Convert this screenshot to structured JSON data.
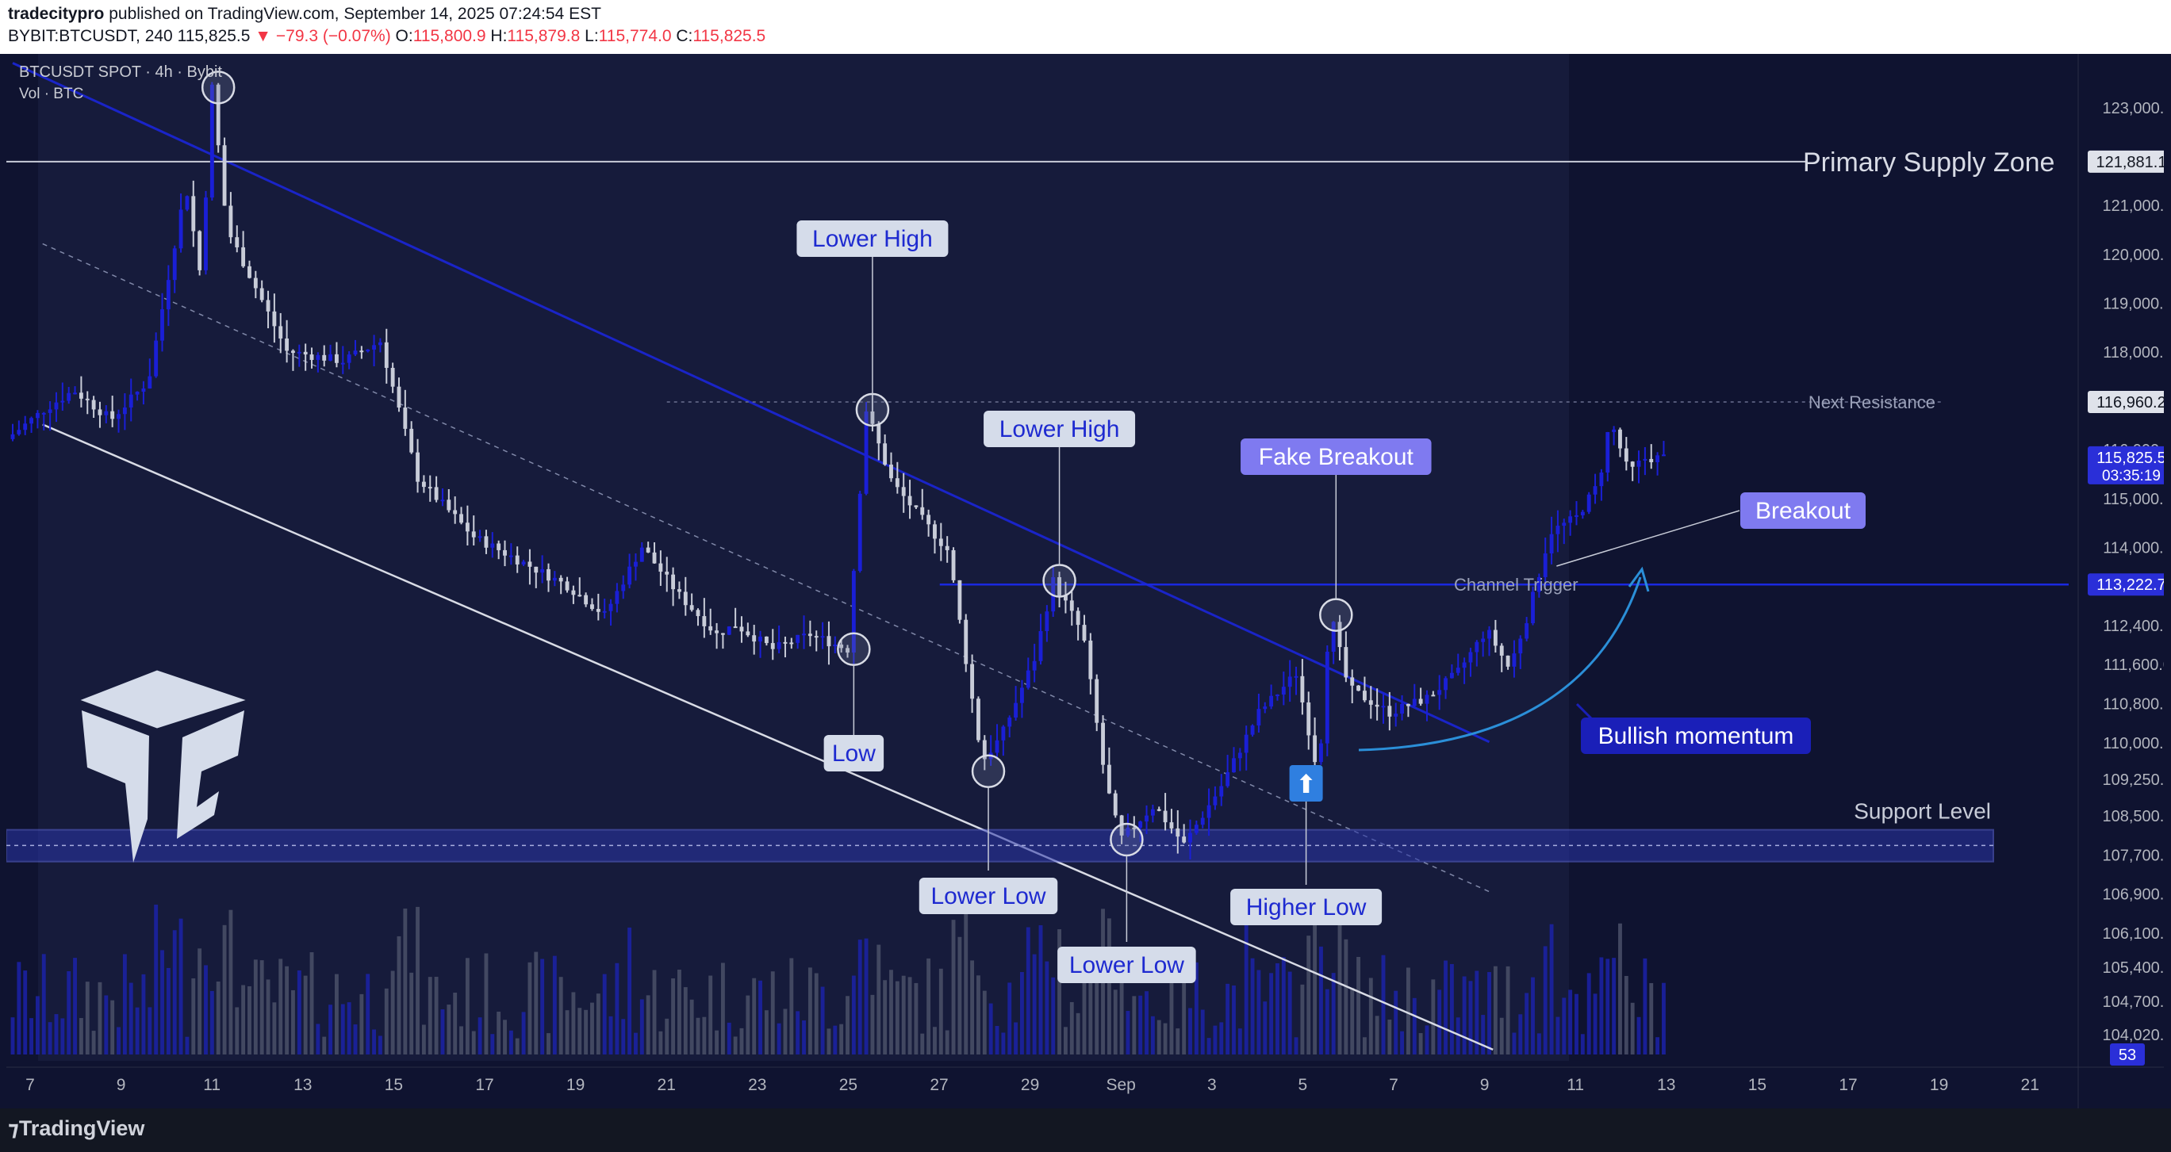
{
  "header": {
    "publisher": "tradecitypro",
    "published_text": "published on TradingView.com, September 14, 2025 07:24:54 EST",
    "symbol_line": "BYBIT:BTCUSDT, 240",
    "last_price": "115,825.5",
    "change": "▼ −79.3 (−0.07%)",
    "open_label": "O:",
    "open": "115,800.9",
    "high_label": "H:",
    "high": "115,879.8",
    "low_label": "L:",
    "low": "115,774.0",
    "close_label": "C:",
    "close": "115,825.5"
  },
  "legend": {
    "symbol": "BTCUSDT SPOT · 4h · Bybit",
    "volume": "Vol · BTC"
  },
  "footer": {
    "brand": "TradingView"
  },
  "colors": {
    "background": "#0f1330",
    "bull": "#1a1fd6",
    "bear": "#c8ccd8",
    "channel_line": "#1a24c8",
    "label_light_bg": "#d5dcea",
    "label_light_text": "#1e2ad0",
    "label_purple": "#7f7af0",
    "label_navy": "#1a1fb8"
  },
  "chart_data": {
    "type": "candlestick",
    "symbol": "BTCUSDT",
    "timeframe": "4h",
    "ylim": [
      103600,
      123600
    ],
    "yticks": [
      "123,000.0",
      "122,000.0",
      "121,000.0",
      "120,000.0",
      "119,000.0",
      "118,000.0",
      "116,000.0",
      "115,000.0",
      "114,000.0",
      "112,400.0",
      "111,600.0",
      "110,800.0",
      "110,000.0",
      "109,250.0",
      "108,500.0",
      "107,700.0",
      "106,900.0",
      "106,100.0",
      "105,400.0",
      "104,700.0",
      "104,020.0"
    ],
    "xticks": [
      "7",
      "9",
      "11",
      "13",
      "15",
      "17",
      "19",
      "21",
      "23",
      "25",
      "27",
      "29",
      "Sep",
      "3",
      "5",
      "7",
      "9",
      "11",
      "13",
      "15",
      "17",
      "19",
      "21"
    ],
    "price_tags": [
      {
        "label": "121,881.1",
        "style": "light"
      },
      {
        "label": "116,960.2",
        "style": "light"
      },
      {
        "label": "115,825.5",
        "sub": "03:35:19",
        "style": "blue"
      },
      {
        "label": "113,222.7",
        "style": "blue"
      },
      {
        "label": "53",
        "style": "blue"
      }
    ],
    "swing_points": [
      {
        "x": 5.5,
        "y": 123400
      },
      {
        "x": 23.0,
        "y": 116800
      },
      {
        "x": 22.5,
        "y": 111900
      },
      {
        "x": 28.0,
        "y": 113300
      },
      {
        "x": 26.1,
        "y": 109400
      },
      {
        "x": 29.8,
        "y": 108000
      },
      {
        "x": 35.4,
        "y": 112600
      }
    ],
    "annotations": [
      {
        "text": "Primary Supply Zone",
        "kind": "level",
        "price": 121881.1
      },
      {
        "text": "Next Resistance",
        "kind": "level",
        "price": 116960.2
      },
      {
        "text": "Channel Trigger",
        "kind": "level",
        "price": 113222.7
      },
      {
        "text": "Support Level",
        "kind": "zone",
        "from": 107550,
        "to": 108200
      },
      {
        "text": "Lower High",
        "kind": "label",
        "x": 23.0,
        "y": 116800
      },
      {
        "text": "Lower High",
        "kind": "label",
        "x": 28.0,
        "y": 113300
      },
      {
        "text": "Low",
        "kind": "label",
        "x": 22.5,
        "y": 111900
      },
      {
        "text": "Lower Low",
        "kind": "label",
        "x": 26.1,
        "y": 109400
      },
      {
        "text": "Lower Low",
        "kind": "label",
        "x": 29.8,
        "y": 108000
      },
      {
        "text": "Fake Breakout",
        "kind": "label",
        "x": 35.4,
        "y": 112600
      },
      {
        "text": "Higher Low",
        "kind": "label",
        "x": 35.0,
        "y": 109200
      },
      {
        "text": "Breakout",
        "kind": "label",
        "x": 39.4,
        "y": 113500
      },
      {
        "text": "Bullish momentum",
        "kind": "label",
        "x": 38.0,
        "y": 110500
      }
    ]
  }
}
